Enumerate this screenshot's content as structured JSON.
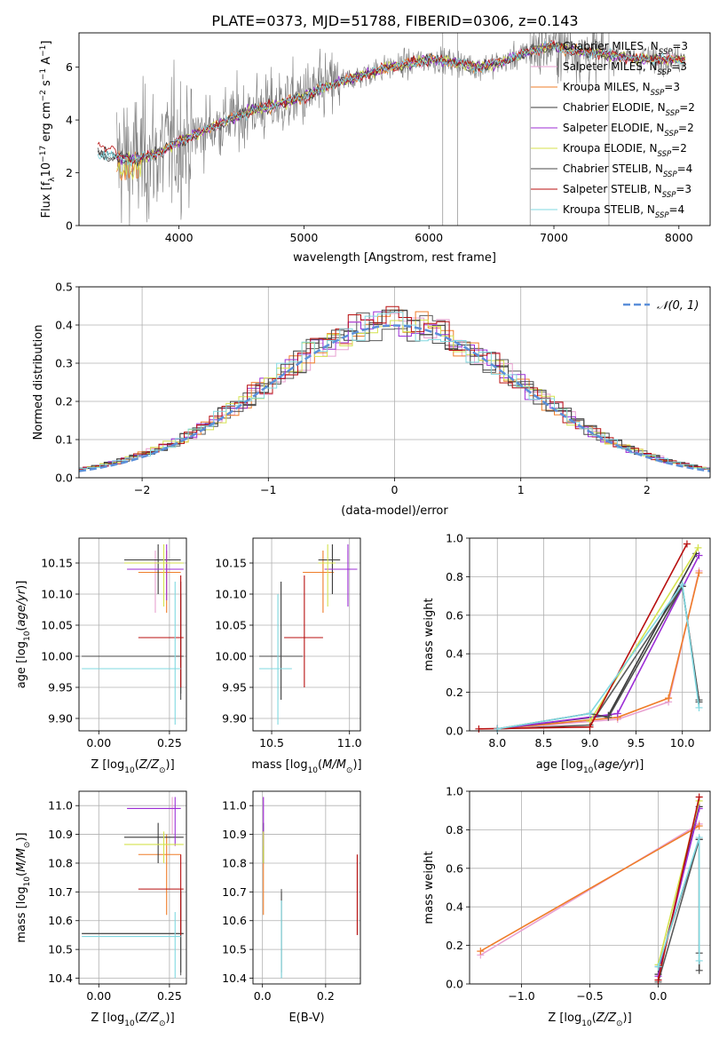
{
  "figure": {
    "title": "PLATE=0373, MJD=51788, FIBERID=0306, z=0.143"
  },
  "series_colors": [
    "#5a5a5a",
    "#e8a0d0",
    "#ef7d29",
    "#3a3a3a",
    "#9c2ed6",
    "#d4e24d",
    "#4a4a4a",
    "#b80f0f",
    "#80d8e0"
  ],
  "chart_data": [
    {
      "id": "spectrum",
      "type": "line",
      "xlabel": "wavelength [Angstrom, rest frame]",
      "ylabel": "Flux [f_λ 10^-17 erg cm^-2 s^-1 A^-1]",
      "xlim": [
        3200,
        8250
      ],
      "ylim": [
        0,
        7.3
      ],
      "xticks": [
        4000,
        5000,
        6000,
        7000,
        8000
      ],
      "yticks": [
        0,
        2,
        4,
        6
      ],
      "grid": false,
      "legend_position": "top-right",
      "legend": [
        {
          "label": "Chabrier MILES, N",
          "sub": "SSP",
          "tail": "=3",
          "color": "#5a5a5a"
        },
        {
          "label": "Salpeter MILES, N",
          "sub": "SSP",
          "tail": "=3",
          "color": "#e8a0d0"
        },
        {
          "label": "Kroupa MILES, N",
          "sub": "SSP",
          "tail": "=3",
          "color": "#ef7d29"
        },
        {
          "label": "Chabrier ELODIE, N",
          "sub": "SSP",
          "tail": "=2",
          "color": "#3a3a3a"
        },
        {
          "label": "Salpeter ELODIE, N",
          "sub": "SSP",
          "tail": "=2",
          "color": "#9c2ed6"
        },
        {
          "label": "Kroupa ELODIE, N",
          "sub": "SSP",
          "tail": "=2",
          "color": "#d4e24d"
        },
        {
          "label": "Chabrier STELIB, N",
          "sub": "SSP",
          "tail": "=4",
          "color": "#4a4a4a"
        },
        {
          "label": "Salpeter STELIB, N",
          "sub": "SSP",
          "tail": "=3",
          "color": "#b80f0f"
        },
        {
          "label": "Kroupa STELIB, N",
          "sub": "SSP",
          "tail": "=4",
          "color": "#80d8e0"
        }
      ],
      "model_continuum": [
        [
          3350,
          2.75
        ],
        [
          3500,
          2.6
        ],
        [
          3650,
          2.5
        ],
        [
          3800,
          2.7
        ],
        [
          3900,
          2.9
        ],
        [
          4000,
          3.2
        ],
        [
          4200,
          3.6
        ],
        [
          4400,
          4.0
        ],
        [
          4600,
          4.4
        ],
        [
          4800,
          4.6
        ],
        [
          5000,
          4.9
        ],
        [
          5200,
          5.3
        ],
        [
          5400,
          5.6
        ],
        [
          5600,
          5.9
        ],
        [
          5800,
          6.1
        ],
        [
          6000,
          6.3
        ],
        [
          6200,
          6.2
        ],
        [
          6400,
          6.0
        ],
        [
          6600,
          6.2
        ],
        [
          6800,
          6.6
        ],
        [
          7000,
          6.8
        ],
        [
          7200,
          6.6
        ],
        [
          7400,
          6.5
        ],
        [
          7700,
          6.3
        ],
        [
          8050,
          6.3
        ]
      ]
    },
    {
      "id": "residuals",
      "type": "line",
      "xlabel": "(data-model)/error",
      "ylabel": "Normed distribution",
      "xlim": [
        -2.5,
        2.5
      ],
      "ylim": [
        0,
        0.5
      ],
      "xticks": [
        -2,
        -1,
        0,
        1,
        2
      ],
      "yticks": [
        0.0,
        0.1,
        0.2,
        0.3,
        0.4,
        0.5
      ],
      "grid": true,
      "legend_position": "top-right",
      "reference": {
        "label": "𝒩(0, 1)",
        "mu": 0,
        "sigma": 1,
        "color": "#5b8fd9"
      }
    },
    {
      "id": "age-vs-Z",
      "type": "scatter",
      "xlabel": "Z [log10(Z/Z⊙)]",
      "ylabel": "age [log10(age/yr)]",
      "xlim": [
        -0.07,
        0.31
      ],
      "ylim": [
        9.88,
        10.19
      ],
      "xticks": [
        0.0,
        0.25
      ],
      "yticks": [
        9.9,
        9.95,
        10.0,
        10.05,
        10.1,
        10.15
      ],
      "grid": true,
      "points": [
        {
          "x": 0.29,
          "y": 10.0,
          "xlo": -0.06,
          "xhi": 0.3,
          "ylo": 9.94,
          "yhi": 10.1,
          "color": "#5a5a5a"
        },
        {
          "x": 0.2,
          "y": 10.14,
          "xlo": 0.1,
          "xhi": 0.29,
          "ylo": 10.07,
          "yhi": 10.17,
          "color": "#e8a0d0"
        },
        {
          "x": 0.24,
          "y": 10.135,
          "xlo": 0.14,
          "xhi": 0.29,
          "ylo": 10.07,
          "yhi": 10.17,
          "color": "#ef7d29"
        },
        {
          "x": 0.21,
          "y": 10.155,
          "xlo": 0.09,
          "xhi": 0.29,
          "ylo": 10.1,
          "yhi": 10.18,
          "color": "#3a3a3a"
        },
        {
          "x": 0.24,
          "y": 10.14,
          "xlo": 0.1,
          "xhi": 0.3,
          "ylo": 10.09,
          "yhi": 10.18,
          "color": "#9c2ed6"
        },
        {
          "x": 0.23,
          "y": 10.15,
          "xlo": 0.09,
          "xhi": 0.3,
          "ylo": 10.08,
          "yhi": 10.18,
          "color": "#d4e24d"
        },
        {
          "x": 0.29,
          "y": 10.0,
          "xlo": -0.06,
          "xhi": 0.3,
          "ylo": 9.93,
          "yhi": 10.12,
          "color": "#4a4a4a"
        },
        {
          "x": 0.29,
          "y": 10.03,
          "xlo": 0.14,
          "xhi": 0.3,
          "ylo": 9.95,
          "yhi": 10.13,
          "color": "#b80f0f"
        },
        {
          "x": 0.27,
          "y": 9.98,
          "xlo": -0.06,
          "xhi": 0.29,
          "ylo": 9.89,
          "yhi": 10.12,
          "color": "#80d8e0"
        }
      ]
    },
    {
      "id": "age-vs-mass",
      "type": "scatter",
      "xlabel": "mass [log10(M/M⊙)]",
      "ylabel": "",
      "xlim": [
        10.38,
        11.07
      ],
      "ylim": [
        9.88,
        10.19
      ],
      "xticks": [
        10.5,
        11.0
      ],
      "yticks": [
        9.9,
        9.95,
        10.0,
        10.05,
        10.1,
        10.15
      ],
      "grid": true,
      "points": [
        {
          "x": 10.56,
          "y": 10.0,
          "xlo": 10.42,
          "xhi": 10.68,
          "ylo": 9.93,
          "yhi": 10.12,
          "color": "#5a5a5a"
        },
        {
          "x": 10.99,
          "y": 10.14,
          "xlo": 10.86,
          "xhi": 11.04,
          "ylo": 10.09,
          "yhi": 10.17,
          "color": "#e8a0d0"
        },
        {
          "x": 10.83,
          "y": 10.135,
          "xlo": 10.7,
          "xhi": 10.9,
          "ylo": 10.07,
          "yhi": 10.17,
          "color": "#ef7d29"
        },
        {
          "x": 10.89,
          "y": 10.155,
          "xlo": 10.8,
          "xhi": 10.94,
          "ylo": 10.1,
          "yhi": 10.18,
          "color": "#3a3a3a"
        },
        {
          "x": 10.99,
          "y": 10.14,
          "xlo": 10.84,
          "xhi": 11.05,
          "ylo": 10.08,
          "yhi": 10.18,
          "color": "#9c2ed6"
        },
        {
          "x": 10.86,
          "y": 10.15,
          "xlo": 10.8,
          "xhi": 10.91,
          "ylo": 10.08,
          "yhi": 10.18,
          "color": "#d4e24d"
        },
        {
          "x": 10.56,
          "y": 10.0,
          "xlo": 10.42,
          "xhi": 10.7,
          "ylo": 9.93,
          "yhi": 10.12,
          "color": "#4a4a4a"
        },
        {
          "x": 10.71,
          "y": 10.03,
          "xlo": 10.58,
          "xhi": 10.83,
          "ylo": 9.95,
          "yhi": 10.13,
          "color": "#b80f0f"
        },
        {
          "x": 10.54,
          "y": 9.98,
          "xlo": 10.42,
          "xhi": 10.63,
          "ylo": 9.89,
          "yhi": 10.1,
          "color": "#80d8e0"
        }
      ]
    },
    {
      "id": "mass-weight-vs-age",
      "type": "line",
      "xlabel": "age [log10(age/yr)]",
      "ylabel": "mass weight",
      "xlim": [
        7.7,
        10.3
      ],
      "ylim": [
        0,
        1.0
      ],
      "xticks": [
        8.0,
        8.5,
        9.0,
        9.5,
        10.0
      ],
      "yticks": [
        0.0,
        0.2,
        0.4,
        0.6,
        0.8,
        1.0
      ],
      "grid": true,
      "series": [
        {
          "color": "#5a5a5a",
          "points": [
            [
              8.0,
              0.01
            ],
            [
              9.0,
              0.03
            ],
            [
              10.0,
              0.75
            ],
            [
              10.18,
              0.16
            ]
          ]
        },
        {
          "color": "#e8a0d0",
          "points": [
            [
              8.0,
              0.01
            ],
            [
              9.3,
              0.06
            ],
            [
              9.85,
              0.15
            ],
            [
              10.18,
              0.83
            ]
          ]
        },
        {
          "color": "#ef7d29",
          "points": [
            [
              8.0,
              0.01
            ],
            [
              9.3,
              0.07
            ],
            [
              9.85,
              0.17
            ],
            [
              10.18,
              0.82
            ]
          ]
        },
        {
          "color": "#3a3a3a",
          "points": [
            [
              8.0,
              0.01
            ],
            [
              9.2,
              0.08
            ],
            [
              10.15,
              0.92
            ]
          ]
        },
        {
          "color": "#9c2ed6",
          "points": [
            [
              8.0,
              0.01
            ],
            [
              9.3,
              0.09
            ],
            [
              10.18,
              0.91
            ]
          ]
        },
        {
          "color": "#d4e24d",
          "points": [
            [
              9.0,
              0.05
            ],
            [
              10.17,
              0.95
            ]
          ]
        },
        {
          "color": "#4a4a4a",
          "points": [
            [
              8.0,
              0.01
            ],
            [
              9.0,
              0.09
            ],
            [
              9.2,
              0.07
            ],
            [
              10.0,
              0.75
            ],
            [
              10.18,
              0.15
            ]
          ]
        },
        {
          "color": "#b80f0f",
          "points": [
            [
              7.8,
              0.01
            ],
            [
              9.0,
              0.02
            ],
            [
              10.05,
              0.97
            ]
          ]
        },
        {
          "color": "#80d8e0",
          "points": [
            [
              8.0,
              0.01
            ],
            [
              9.0,
              0.09
            ],
            [
              10.0,
              0.76
            ],
            [
              10.18,
              0.12
            ]
          ]
        }
      ]
    },
    {
      "id": "mass-vs-Z",
      "type": "scatter",
      "xlabel": "Z [log10(Z/Z⊙)]",
      "ylabel": "mass [log10(M/M⊙)]",
      "xlim": [
        -0.07,
        0.31
      ],
      "ylim": [
        10.38,
        11.05
      ],
      "xticks": [
        0.0,
        0.25
      ],
      "yticks": [
        10.4,
        10.5,
        10.6,
        10.7,
        10.8,
        10.9,
        11.0
      ],
      "grid": true,
      "points": [
        {
          "x": 0.29,
          "y": 10.555,
          "xlo": -0.06,
          "xhi": 0.3,
          "ylo": 10.41,
          "yhi": 10.71,
          "color": "#5a5a5a"
        },
        {
          "x": 0.26,
          "y": 10.99,
          "xlo": 0.1,
          "xhi": 0.29,
          "ylo": 10.9,
          "yhi": 11.03,
          "color": "#e8a0d0"
        },
        {
          "x": 0.24,
          "y": 10.83,
          "xlo": 0.14,
          "xhi": 0.29,
          "ylo": 10.62,
          "yhi": 10.9,
          "color": "#ef7d29"
        },
        {
          "x": 0.21,
          "y": 10.89,
          "xlo": 0.09,
          "xhi": 0.3,
          "ylo": 10.8,
          "yhi": 10.94,
          "color": "#3a3a3a"
        },
        {
          "x": 0.27,
          "y": 10.99,
          "xlo": 0.1,
          "xhi": 0.29,
          "ylo": 10.86,
          "yhi": 11.03,
          "color": "#9c2ed6"
        },
        {
          "x": 0.23,
          "y": 10.865,
          "xlo": 0.09,
          "xhi": 0.3,
          "ylo": 10.8,
          "yhi": 10.91,
          "color": "#d4e24d"
        },
        {
          "x": 0.29,
          "y": 10.555,
          "xlo": -0.06,
          "xhi": 0.3,
          "ylo": 10.42,
          "yhi": 10.7,
          "color": "#4a4a4a"
        },
        {
          "x": 0.29,
          "y": 10.71,
          "xlo": 0.14,
          "xhi": 0.3,
          "ylo": 10.55,
          "yhi": 10.83,
          "color": "#b80f0f"
        },
        {
          "x": 0.27,
          "y": 10.545,
          "xlo": -0.06,
          "xhi": 0.29,
          "ylo": 10.4,
          "yhi": 10.63,
          "color": "#80d8e0"
        }
      ]
    },
    {
      "id": "mass-vs-EBV",
      "type": "scatter",
      "xlabel": "E(B-V)",
      "ylabel": "",
      "xlim": [
        -0.03,
        0.31
      ],
      "ylim": [
        10.38,
        11.05
      ],
      "xticks": [
        0.0,
        0.2
      ],
      "yticks": [
        10.4,
        10.5,
        10.6,
        10.7,
        10.8,
        10.9,
        11.0
      ],
      "grid": true,
      "points": [
        {
          "x": 0.06,
          "y": 10.55,
          "ylo": 10.4,
          "yhi": 10.71,
          "color": "#5a5a5a"
        },
        {
          "x": 0.003,
          "y": 10.99,
          "ylo": 10.9,
          "yhi": 11.03,
          "color": "#e8a0d0"
        },
        {
          "x": 0.003,
          "y": 10.83,
          "ylo": 10.62,
          "yhi": 10.9,
          "color": "#ef7d29"
        },
        {
          "x": 0.003,
          "y": 10.89,
          "ylo": 10.8,
          "yhi": 10.94,
          "color": "#3a3a3a"
        },
        {
          "x": 0.003,
          "y": 10.99,
          "ylo": 10.86,
          "yhi": 11.03,
          "color": "#9c2ed6"
        },
        {
          "x": 0.003,
          "y": 10.865,
          "ylo": 10.8,
          "yhi": 10.91,
          "color": "#d4e24d"
        },
        {
          "x": 0.06,
          "y": 10.55,
          "ylo": 10.42,
          "yhi": 10.7,
          "color": "#4a4a4a"
        },
        {
          "x": 0.3,
          "y": 10.71,
          "ylo": 10.55,
          "yhi": 10.83,
          "color": "#b80f0f"
        },
        {
          "x": 0.06,
          "y": 10.545,
          "ylo": 10.4,
          "yhi": 10.67,
          "color": "#80d8e0"
        }
      ]
    },
    {
      "id": "mass-weight-vs-Z",
      "type": "line",
      "xlabel": "Z [log10(Z/Z⊙)]",
      "ylabel": "mass weight",
      "xlim": [
        -1.38,
        0.38
      ],
      "ylim": [
        0,
        1.0
      ],
      "xticks": [
        -1.0,
        -0.5,
        0.0
      ],
      "yticks": [
        0.0,
        0.2,
        0.4,
        0.6,
        0.8,
        1.0
      ],
      "grid": true,
      "series": [
        {
          "color": "#5a5a5a",
          "points": [
            [
              0.0,
              0.01
            ],
            [
              0.3,
              0.75
            ],
            [
              0.3,
              0.16
            ]
          ]
        },
        {
          "color": "#e8a0d0",
          "points": [
            [
              -1.3,
              0.15
            ],
            [
              0.3,
              0.83
            ]
          ]
        },
        {
          "color": "#ef7d29",
          "points": [
            [
              -1.3,
              0.17
            ],
            [
              0.3,
              0.82
            ]
          ]
        },
        {
          "color": "#3a3a3a",
          "points": [
            [
              0.0,
              0.05
            ],
            [
              0.3,
              0.92
            ]
          ]
        },
        {
          "color": "#9c2ed6",
          "points": [
            [
              0.0,
              0.04
            ],
            [
              0.3,
              0.91
            ]
          ]
        },
        {
          "color": "#d4e24d",
          "points": [
            [
              0.0,
              0.1
            ],
            [
              0.3,
              0.95
            ]
          ]
        },
        {
          "color": "#4a4a4a",
          "points": [
            [
              0.0,
              0.09
            ],
            [
              0.3,
              0.75
            ],
            [
              0.3,
              0.07
            ]
          ]
        },
        {
          "color": "#b80f0f",
          "points": [
            [
              0.0,
              0.02
            ],
            [
              0.3,
              0.97
            ]
          ]
        },
        {
          "color": "#80d8e0",
          "points": [
            [
              0.0,
              0.09
            ],
            [
              0.3,
              0.76
            ],
            [
              0.3,
              0.12
            ]
          ]
        }
      ]
    }
  ]
}
